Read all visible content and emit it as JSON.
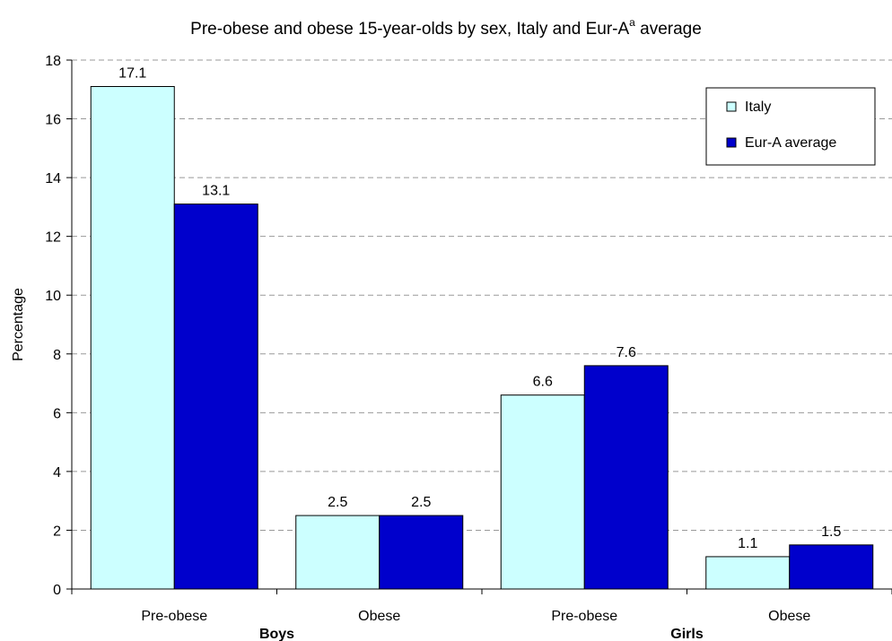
{
  "chart_data": {
    "type": "bar",
    "title": "Pre-obese and obese 15-year-olds by sex, Italy and Eur-A",
    "title_superscript": "a",
    "title_suffix": " average",
    "ylabel": "Percentage",
    "xlabel": "",
    "ylim": [
      0,
      18
    ],
    "yticks": [
      "0",
      "2",
      "4",
      "6",
      "8",
      "10",
      "12",
      "14",
      "16",
      "18"
    ],
    "grid": true,
    "legend_position": "top-right",
    "categories": [
      "Pre-obese",
      "Obese",
      "Pre-obese",
      "Obese"
    ],
    "groups": [
      "Boys",
      "Girls"
    ],
    "series": [
      {
        "name": "Italy",
        "color": "#ccffff",
        "values": [
          17.1,
          2.5,
          6.6,
          1.1
        ],
        "labels": [
          "17.1",
          "2.5",
          "6.6",
          "1.1"
        ]
      },
      {
        "name": "Eur-A average",
        "color": "#0000cc",
        "values": [
          13.1,
          2.5,
          7.6,
          1.5
        ],
        "labels": [
          "13.1",
          "2.5",
          "7.6",
          "1.5"
        ]
      }
    ]
  }
}
